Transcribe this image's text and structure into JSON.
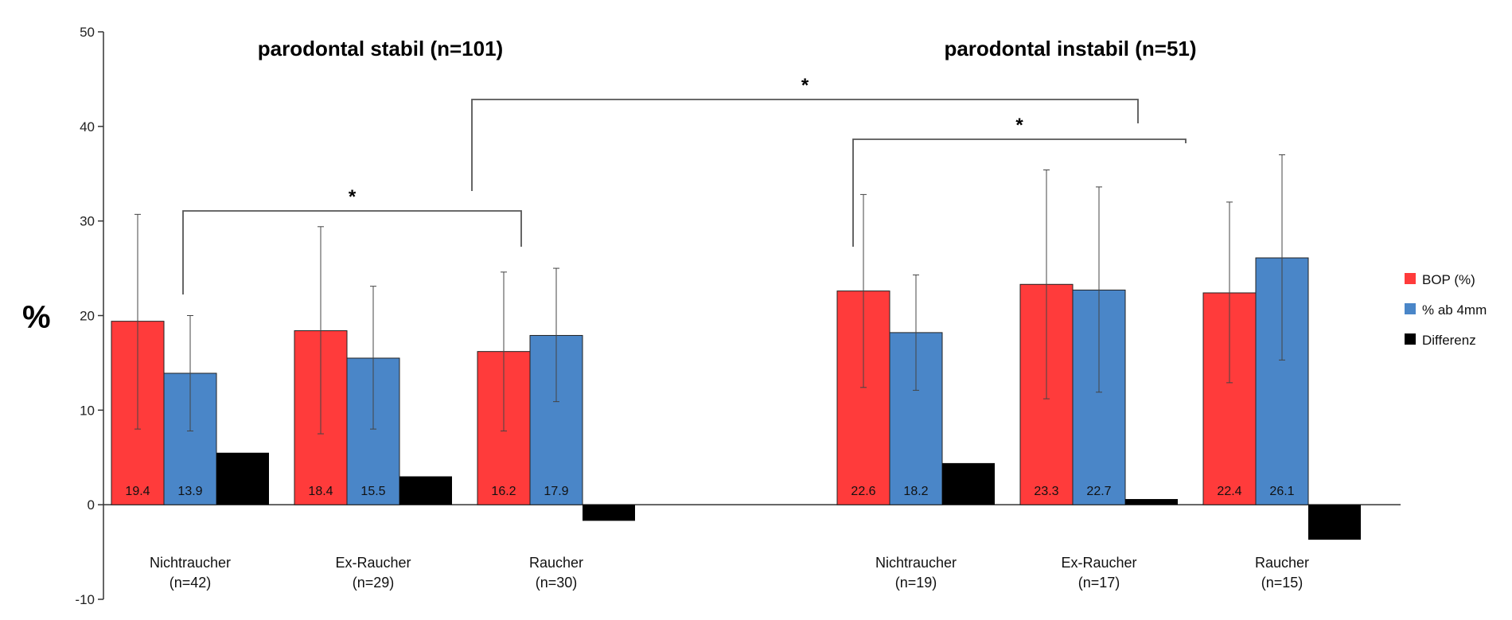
{
  "chart_data": {
    "type": "bar",
    "title": "",
    "xlabel": "",
    "ylabel": "%",
    "ylim": [
      -10,
      50
    ],
    "yticks": [
      -10,
      0,
      10,
      20,
      30,
      40,
      50
    ],
    "grid": false,
    "legend_position": "right",
    "colors": {
      "BOP (%)": "#ff3b3b",
      "% ab 4mm": "#4a86c8",
      "Differenz": "#000000"
    },
    "groups": [
      {
        "name": "parodontal stabil (n=101)",
        "categories": [
          {
            "line1": "Nichtraucher",
            "line2": "(n=42)"
          },
          {
            "line1": "Ex-Raucher",
            "line2": "(n=29)"
          },
          {
            "line1": "Raucher",
            "line2": "(n=30)"
          }
        ]
      },
      {
        "name": "parodontal instabil (n=51)",
        "categories": [
          {
            "line1": "Nichtraucher",
            "line2": "(n=19)"
          },
          {
            "line1": "Ex-Raucher",
            "line2": "(n=17)"
          },
          {
            "line1": "Raucher",
            "line2": "(n=15)"
          }
        ]
      }
    ],
    "series": [
      {
        "name": "BOP (%)",
        "values": [
          19.4,
          18.4,
          16.2,
          22.6,
          23.3,
          22.4
        ],
        "labels": [
          "19.4",
          "18.4",
          "16.2",
          "22.6",
          "23.3",
          "22.4"
        ],
        "err_low": [
          8.0,
          7.5,
          7.8,
          12.4,
          11.2,
          12.9
        ],
        "err_high": [
          30.7,
          29.4,
          24.6,
          32.8,
          35.4,
          32.0
        ]
      },
      {
        "name": "% ab 4mm",
        "values": [
          13.9,
          15.5,
          17.9,
          18.2,
          22.7,
          26.1
        ],
        "labels": [
          "13.9",
          "15.5",
          "17.9",
          "18.2",
          "22.7",
          "26.1"
        ],
        "err_low": [
          7.8,
          8.0,
          10.9,
          12.1,
          11.9,
          15.3
        ],
        "err_high": [
          20.0,
          23.1,
          25.0,
          24.3,
          33.6,
          37.0
        ]
      },
      {
        "name": "Differenz",
        "values": [
          5.5,
          3.0,
          -1.7,
          4.4,
          0.6,
          -3.7
        ]
      }
    ],
    "significance": [
      {
        "label": "*",
        "from_category": 0,
        "to_category": 2
      },
      {
        "label": "*",
        "from_category": 2,
        "to_category": 4
      },
      {
        "label": "*",
        "from_category": 3,
        "to_category": 5
      }
    ]
  }
}
